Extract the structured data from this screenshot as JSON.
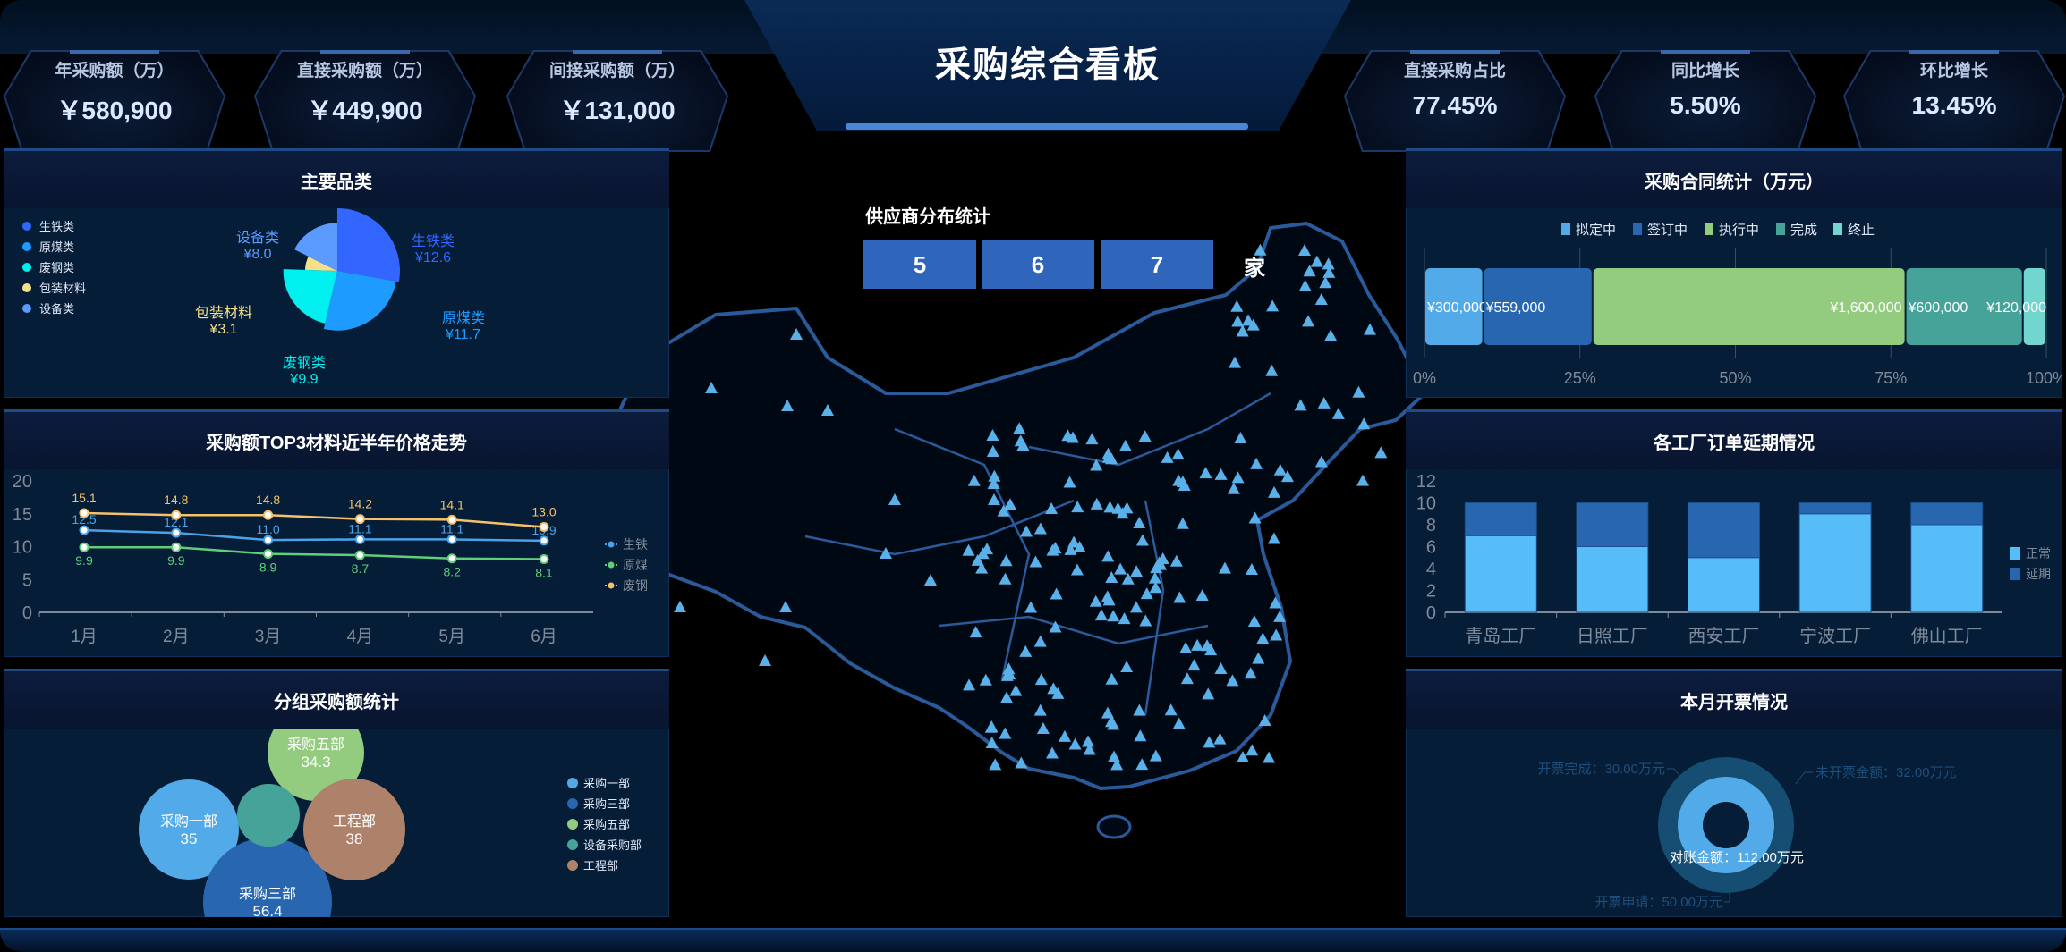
{
  "header": {
    "title": "采购综合看板"
  },
  "kpis_left": [
    {
      "label": "年采购额（万）",
      "value": "￥580,900"
    },
    {
      "label": "直接采购额（万）",
      "value": "￥449,900"
    },
    {
      "label": "间接采购额（万）",
      "value": "￥131,000"
    }
  ],
  "kpis_right": [
    {
      "label": "直接采购占比",
      "value": "77.45%"
    },
    {
      "label": "同比增长",
      "value": "5.50%"
    },
    {
      "label": "环比增长",
      "value": "13.45%"
    }
  ],
  "supplier": {
    "title": "供应商分布统计",
    "digits": [
      "5",
      "6",
      "7"
    ],
    "unit": "家"
  },
  "map": {
    "marker_icon": "triangle-icon",
    "marker_color": "#5ab0e8",
    "outline_color": "#2a5a9a"
  },
  "chart_data": [
    {
      "id": "category",
      "type": "pie",
      "title": "主要品类",
      "rose": true,
      "legend_position": "left",
      "categories": [
        "生铁类",
        "原煤类",
        "废钢类",
        "包装材料",
        "设备类"
      ],
      "values": [
        12.6,
        11.7,
        9.9,
        3.1,
        8.0
      ],
      "labels": [
        "¥12.6",
        "¥11.7",
        "¥9.9",
        "¥3.1",
        "¥8.0"
      ],
      "colors": [
        "#3366ff",
        "#1e9bff",
        "#00f0f0",
        "#f5e08a",
        "#5b9bff"
      ]
    },
    {
      "id": "price_trend",
      "type": "line",
      "title": "采购额TOP3材料近半年价格走势",
      "categories": [
        "1月",
        "2月",
        "3月",
        "4月",
        "5月",
        "6月"
      ],
      "ylim": [
        0,
        20
      ],
      "yticks": [
        "0",
        "5",
        "10",
        "15",
        "20"
      ],
      "legend_position": "right",
      "series": [
        {
          "name": "生铁",
          "color": "#4aa3e8",
          "values": [
            12.5,
            12.1,
            11.0,
            11.1,
            11.1,
            10.9
          ]
        },
        {
          "name": "原煤",
          "color": "#5fcf7a",
          "values": [
            9.9,
            9.9,
            8.9,
            8.7,
            8.2,
            8.1
          ]
        },
        {
          "name": "废钢",
          "color": "#f5c26b",
          "values": [
            15.1,
            14.8,
            14.8,
            14.2,
            14.1,
            13.0
          ]
        }
      ]
    },
    {
      "id": "group_amount",
      "type": "bubble",
      "title": "分组采购额统计",
      "legend_position": "right",
      "items": [
        {
          "name": "采购一部",
          "value": "35",
          "color": "#52aae8",
          "show_label": true
        },
        {
          "name": "采购三部",
          "value": "56.4",
          "color": "#2866b0",
          "show_label": true
        },
        {
          "name": "采购五部",
          "value": "34.3",
          "color": "#93cc7e",
          "show_label": true
        },
        {
          "name": "设备采购部",
          "value": "",
          "color": "#46a39a",
          "show_label": false
        },
        {
          "name": "工程部",
          "value": "38",
          "color": "#ae826a",
          "show_label": true
        }
      ]
    },
    {
      "id": "contract",
      "type": "bar",
      "stacked_percent": true,
      "title": "采购合同统计（万元）",
      "legend_position": "top",
      "xticks": [
        "0%",
        "25%",
        "50%",
        "75%",
        "100%"
      ],
      "series": [
        {
          "name": "拟定中",
          "value": 300000,
          "label": "¥300,000",
          "color": "#52aae8"
        },
        {
          "name": "签订中",
          "value": 559000,
          "label": "¥559,000",
          "color": "#2866b0"
        },
        {
          "name": "执行中",
          "value": 1600000,
          "label": "¥1,600,000",
          "color": "#93cc7e"
        },
        {
          "name": "完成",
          "value": 600000,
          "label": "¥600,000",
          "color": "#46a39a"
        },
        {
          "name": "终止",
          "value": 120000,
          "label": "¥120,000",
          "color": "#72d6cf"
        }
      ]
    },
    {
      "id": "factory_delay",
      "type": "bar",
      "stacked": true,
      "title": "各工厂订单延期情况",
      "categories": [
        "青岛工厂",
        "日照工厂",
        "西安工厂",
        "宁波工厂",
        "佛山工厂"
      ],
      "ylim": [
        0,
        12
      ],
      "yticks": [
        "0",
        "2",
        "4",
        "6",
        "8",
        "10",
        "12"
      ],
      "legend_position": "right",
      "series": [
        {
          "name": "正常",
          "color": "#56bdf8",
          "values": [
            7,
            6,
            5,
            9,
            8
          ]
        },
        {
          "name": "延期",
          "color": "#2866b0",
          "values": [
            3,
            4,
            5,
            1,
            2
          ]
        }
      ]
    },
    {
      "id": "invoice",
      "type": "pie",
      "donut": true,
      "title": "本月开票情况",
      "outer": [
        {
          "name": "开票完成",
          "value": 30.0,
          "label": "开票完成：30.00万元"
        },
        {
          "name": "未开票金额",
          "value": 32.0,
          "label": "未开票金额：32.00万元"
        },
        {
          "name": "开票申请",
          "value": 50.0,
          "label": "开票申请：50.00万元"
        }
      ],
      "inner": {
        "name": "对账金额",
        "value": 112.0,
        "label": "对账金额：112.00万元"
      },
      "colors": {
        "outer": "#164d72",
        "inner": "#52aae8"
      }
    }
  ]
}
